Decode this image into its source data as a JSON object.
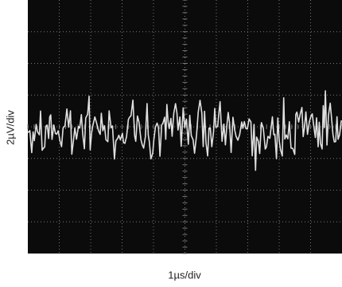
{
  "screen": {
    "y_scale_label": "2µV/div",
    "x_scale_label": "1µs/div"
  }
}
